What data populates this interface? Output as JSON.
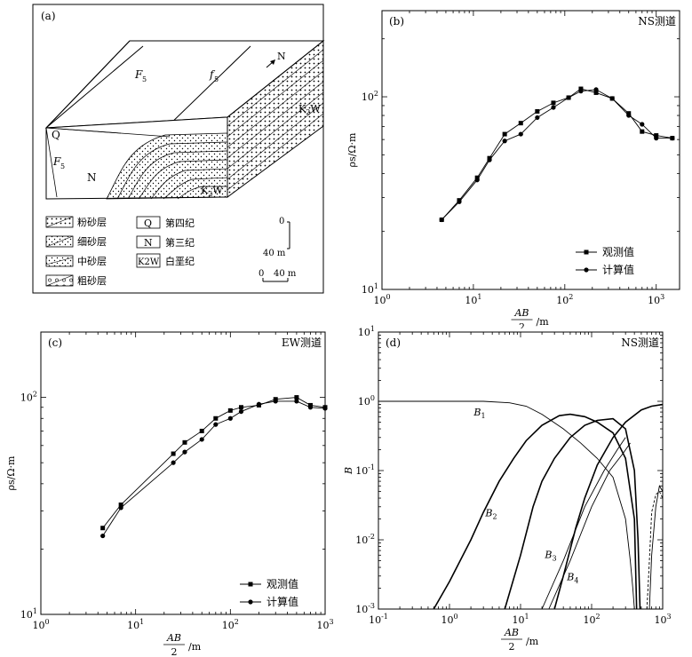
{
  "panels": {
    "a": {
      "tag": "(a)",
      "north": "N",
      "map_labels": {
        "F5a": "F",
        "F5_sub": "5",
        "f5": "f",
        "f5_sub": "5",
        "Q": "Q",
        "F5b": "F",
        "F5b_sub": "5",
        "N": "N",
        "K2W_1": "K",
        "K2W_1b": "W",
        "K2W_sub": "2",
        "K2W_2": "K",
        "K2W_2b": "W"
      },
      "legend": [
        {
          "symbol": "",
          "label": "粉砂层"
        },
        {
          "symbol": "",
          "label": "细砂层"
        },
        {
          "symbol": "",
          "label": "中砂层"
        },
        {
          "symbol": "",
          "label": "粗砂层"
        }
      ],
      "strata": [
        {
          "symbol": "Q",
          "label": "第四纪"
        },
        {
          "symbol": "N",
          "label": "第三纪"
        },
        {
          "symbol": "K2W",
          "label": "白垩纪"
        }
      ],
      "scale_v_top": "0",
      "scale_v_bottom": "40 m",
      "scale_h_left": "0",
      "scale_h_right": "40 m"
    }
  },
  "chart_data": [
    {
      "id": "b",
      "type": "line",
      "tag": "(b)",
      "corner_title": "NS测道",
      "xlabel_num": "AB",
      "xlabel_den": "2",
      "xlabel_unit": "/m",
      "ylabel": "ρs/Ω·m",
      "x_scale": "log",
      "y_scale": "log",
      "xlim": [
        1,
        1800
      ],
      "ylim": [
        10,
        280
      ],
      "x_ticks": [
        "10^0",
        "10^1",
        "10^2",
        "10^3"
      ],
      "y_ticks": [
        "10^1",
        "10^2"
      ],
      "legend_position": "bottom-right",
      "series": [
        {
          "name": "观测值",
          "marker": "square",
          "x": [
            4.5,
            7,
            11,
            15,
            22,
            33,
            50,
            75,
            110,
            150,
            220,
            330,
            500,
            700,
            1000,
            1500
          ],
          "y": [
            23,
            29,
            38,
            48,
            64,
            73,
            84,
            93,
            99,
            110,
            105,
            98,
            82,
            66,
            63,
            61
          ]
        },
        {
          "name": "计算值",
          "marker": "circle",
          "x": [
            4.5,
            7,
            11,
            15,
            22,
            33,
            50,
            75,
            110,
            150,
            220,
            330,
            500,
            700,
            1000,
            1500
          ],
          "y": [
            23,
            28.5,
            37,
            47,
            59,
            64,
            78,
            88,
            99,
            107,
            109,
            98,
            80,
            72,
            61,
            61
          ]
        }
      ]
    },
    {
      "id": "c",
      "type": "line",
      "tag": "(c)",
      "corner_title": "EW测道",
      "xlabel_num": "AB",
      "xlabel_den": "2",
      "xlabel_unit": "/m",
      "ylabel": "ρs/Ω·m",
      "x_scale": "log",
      "y_scale": "log",
      "xlim": [
        1,
        1000
      ],
      "ylim": [
        10,
        200
      ],
      "x_ticks": [
        "10^0",
        "10^1",
        "10^2",
        "10^3"
      ],
      "y_ticks": [
        "10^1",
        "10^2"
      ],
      "legend_position": "bottom-right",
      "series": [
        {
          "name": "观测值",
          "marker": "square",
          "x": [
            4.5,
            7,
            25,
            33,
            50,
            70,
            100,
            130,
            200,
            300,
            500,
            700,
            1000
          ],
          "y": [
            25,
            32,
            55,
            62,
            70,
            80,
            87,
            90,
            92,
            98,
            100,
            92,
            90
          ]
        },
        {
          "name": "计算值",
          "marker": "circle",
          "x": [
            4.5,
            7,
            25,
            33,
            50,
            70,
            100,
            130,
            200,
            300,
            500,
            700,
            1000
          ],
          "y": [
            23,
            31,
            50,
            56,
            64,
            75,
            80,
            86,
            93,
            96,
            96,
            90,
            89
          ]
        }
      ]
    },
    {
      "id": "d",
      "type": "line",
      "tag": "(d)",
      "corner_title": "NS测道",
      "xlabel_num": "AB",
      "xlabel_den": "2",
      "xlabel_unit": "/m",
      "ylabel": "B",
      "x_scale": "log",
      "y_scale": "log",
      "xlim": [
        0.1,
        1000
      ],
      "ylim": [
        0.001,
        10
      ],
      "x_ticks": [
        "10^-1",
        "10^0",
        "10^1",
        "10^2",
        "10^3"
      ],
      "y_ticks": [
        "10^-3",
        "10^-2",
        "10^-1",
        "10^0",
        "10^1"
      ],
      "series": [
        {
          "name": "B1",
          "x": [
            0.1,
            1,
            3,
            7,
            12,
            20,
            40,
            70,
            120,
            200,
            300,
            350,
            380,
            400
          ],
          "y": [
            1,
            1,
            1,
            0.95,
            0.85,
            0.65,
            0.4,
            0.25,
            0.15,
            0.08,
            0.02,
            0.005,
            0.002,
            0.001
          ]
        },
        {
          "name": "B2",
          "x": [
            0.6,
            1,
            2,
            3,
            5,
            8,
            12,
            20,
            35,
            50,
            80,
            120,
            200,
            300,
            400,
            430
          ],
          "y": [
            0.001,
            0.0025,
            0.01,
            0.025,
            0.07,
            0.15,
            0.27,
            0.45,
            0.62,
            0.65,
            0.6,
            0.5,
            0.35,
            0.15,
            0.02,
            0.001
          ]
        },
        {
          "name": "B3",
          "x": [
            6,
            10,
            15,
            20,
            30,
            50,
            80,
            120,
            200,
            300,
            400,
            450,
            480
          ],
          "y": [
            0.001,
            0.006,
            0.03,
            0.07,
            0.15,
            0.3,
            0.45,
            0.53,
            0.56,
            0.4,
            0.1,
            0.01,
            0.001
          ]
        },
        {
          "name": "B4",
          "x": [
            30,
            40,
            60,
            80,
            120,
            200,
            300,
            500,
            700,
            1000
          ],
          "y": [
            0.001,
            0.003,
            0.015,
            0.04,
            0.12,
            0.3,
            0.5,
            0.75,
            0.85,
            0.9
          ]
        },
        {
          "name": "",
          "x": [
            20,
            40,
            80,
            150,
            230,
            300
          ],
          "y": [
            0.001,
            0.005,
            0.03,
            0.1,
            0.2,
            0.3
          ]
        },
        {
          "name": "",
          "x": [
            25,
            50,
            100,
            180,
            280,
            350
          ],
          "y": [
            0.001,
            0.005,
            0.03,
            0.1,
            0.18,
            0.25
          ]
        },
        {
          "name": "",
          "style": "solid-tail",
          "x": [
            650,
            700,
            800,
            900,
            1000
          ],
          "y": [
            0.001,
            0.006,
            0.03,
            0.06,
            0.05
          ]
        },
        {
          "name": "",
          "style": "dashed",
          "x": [
            600,
            650,
            700,
            800,
            900,
            1000
          ],
          "y": [
            0.001,
            0.005,
            0.025,
            0.045,
            0.05,
            0.04
          ]
        }
      ],
      "labels": {
        "B1": "B",
        "B1_sub": "1",
        "B2": "B",
        "B2_sub": "2",
        "B3": "B",
        "B3_sub": "3",
        "B4": "B",
        "B4_sub": "4"
      }
    }
  ]
}
